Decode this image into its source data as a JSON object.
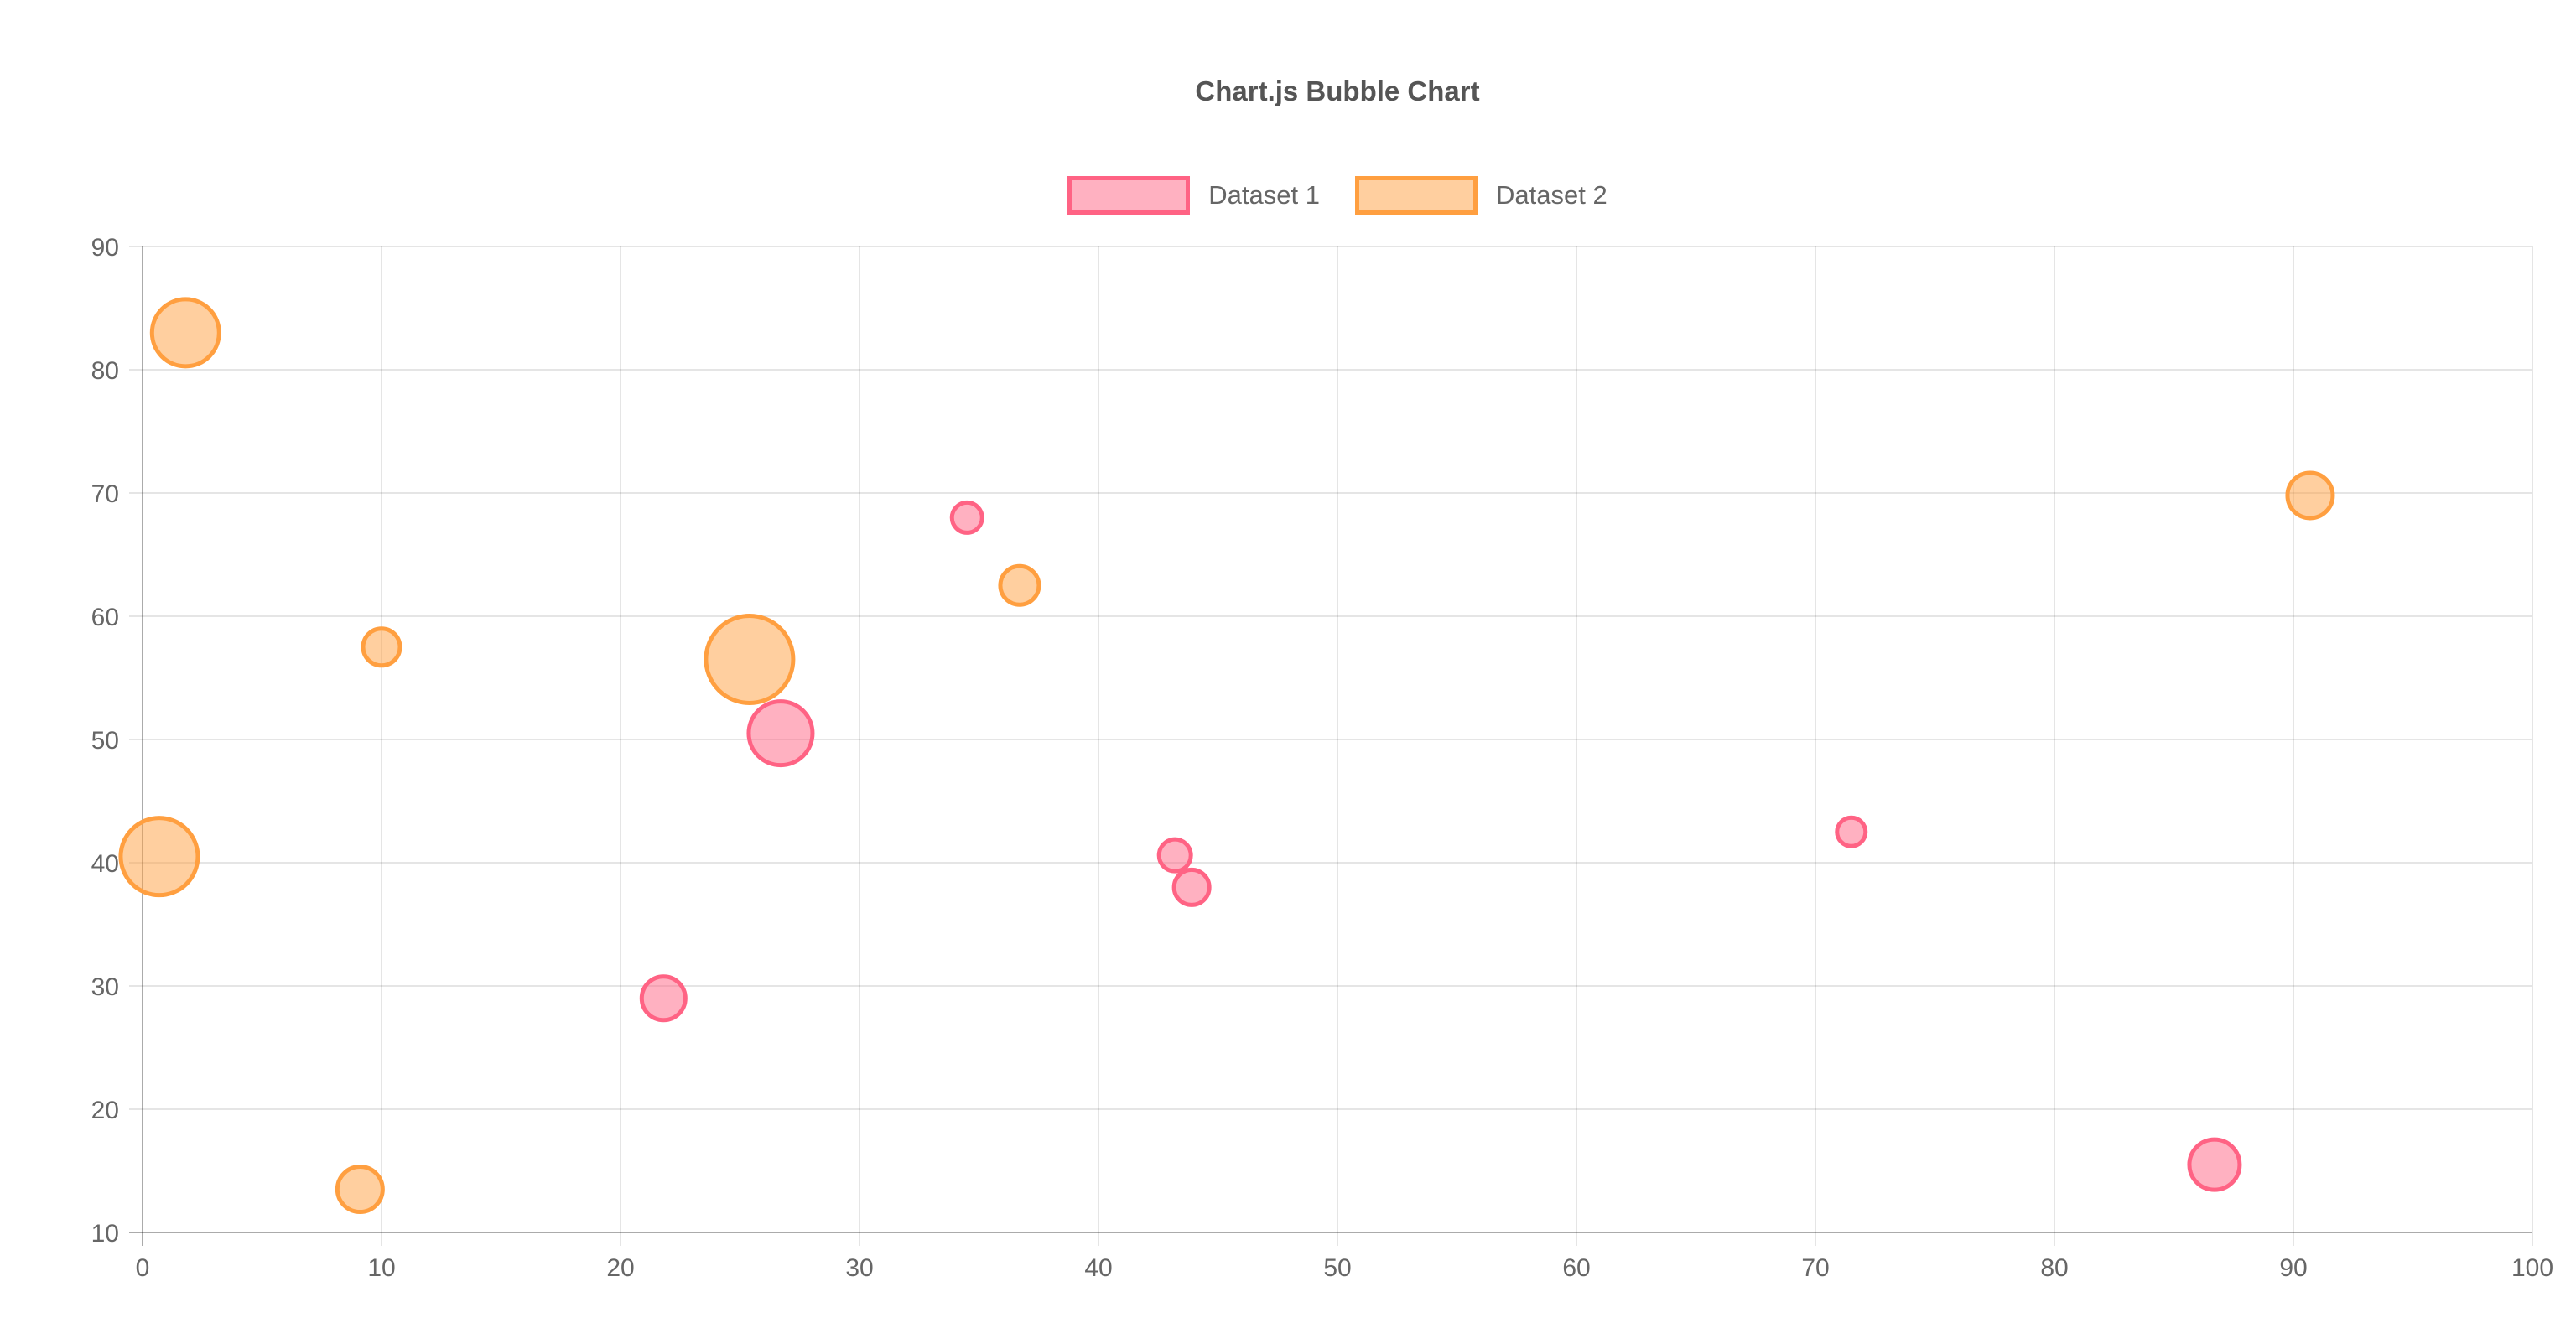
{
  "chart_data": {
    "type": "bubble",
    "title": "Chart.js Bubble Chart",
    "xlabel": "",
    "ylabel": "",
    "xlim": [
      0,
      100
    ],
    "ylim": [
      10,
      90
    ],
    "x_ticks": [
      0,
      10,
      20,
      30,
      40,
      50,
      60,
      70,
      80,
      90,
      100
    ],
    "y_ticks": [
      10,
      20,
      30,
      40,
      50,
      60,
      70,
      80,
      90
    ],
    "grid": true,
    "legend_position": "top",
    "title_color": "#555555",
    "text_color": "#666666",
    "grid_color": "rgba(0,0,0,0.1)",
    "axis_border_color": "rgba(0,0,0,0.25)",
    "series": [
      {
        "name": "Dataset 1",
        "border_color": "rgb(255, 99, 132)",
        "fill_color": "rgba(255, 99, 132, 0.5)",
        "points": [
          {
            "x": 26.7,
            "y": 50.5,
            "r": 38
          },
          {
            "x": 34.5,
            "y": 68,
            "r": 18
          },
          {
            "x": 43.2,
            "y": 40.6,
            "r": 19
          },
          {
            "x": 43.9,
            "y": 38,
            "r": 21
          },
          {
            "x": 21.8,
            "y": 29,
            "r": 26
          },
          {
            "x": 71.5,
            "y": 42.5,
            "r": 17
          },
          {
            "x": 86.7,
            "y": 15.5,
            "r": 30
          }
        ]
      },
      {
        "name": "Dataset 2",
        "border_color": "rgb(255, 159, 64)",
        "fill_color": "rgba(255, 159, 64, 0.5)",
        "points": [
          {
            "x": 1.8,
            "y": 83,
            "r": 40
          },
          {
            "x": 10,
            "y": 57.5,
            "r": 22
          },
          {
            "x": 25.4,
            "y": 56.5,
            "r": 52
          },
          {
            "x": 36.7,
            "y": 62.5,
            "r": 23
          },
          {
            "x": 0.7,
            "y": 40.5,
            "r": 46
          },
          {
            "x": 9.1,
            "y": 13.5,
            "r": 27
          },
          {
            "x": 90.7,
            "y": 69.8,
            "r": 27
          }
        ]
      }
    ]
  }
}
